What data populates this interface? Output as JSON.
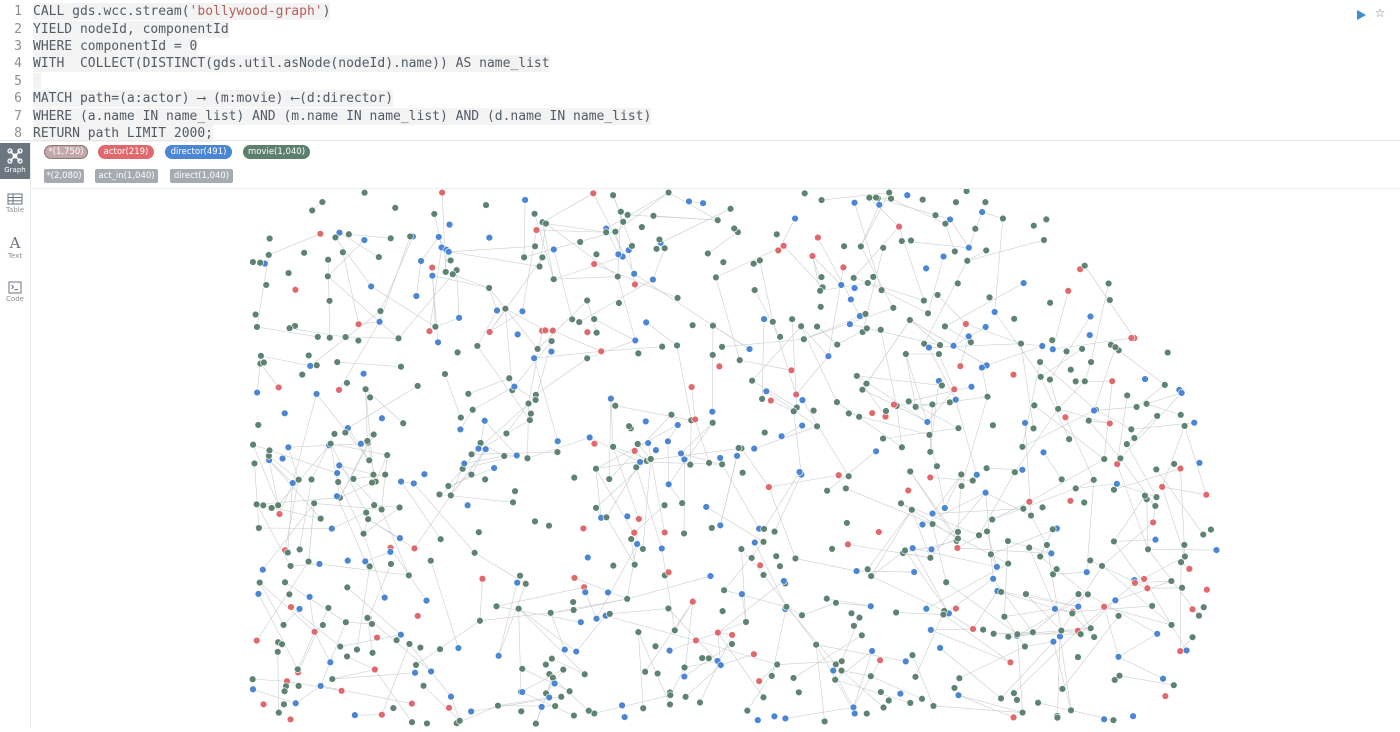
{
  "editor": {
    "lines": [
      {
        "num": "1",
        "segments": [
          {
            "t": "CALL gds.wcc.stream("
          },
          {
            "t": "'bollywood-graph'",
            "cls": "str"
          },
          {
            "t": ")"
          }
        ]
      },
      {
        "num": "2",
        "segments": [
          {
            "t": "YIELD nodeId, componentId"
          }
        ]
      },
      {
        "num": "3",
        "segments": [
          {
            "t": "WHERE componentId = 0"
          }
        ]
      },
      {
        "num": "4",
        "segments": [
          {
            "t": "WITH  COLLECT(DISTINCT(gds.util.asNode(nodeId).name)) AS name_list"
          }
        ]
      },
      {
        "num": "5",
        "segments": []
      },
      {
        "num": "6",
        "segments": [
          {
            "t": "MATCH path=(a:actor) ⟶ (m:movie) ⟵(d:director)"
          }
        ]
      },
      {
        "num": "7",
        "segments": [
          {
            "t": "WHERE (a.name IN name_list) AND (m.name IN name_list) AND (d.name IN name_list)"
          }
        ]
      },
      {
        "num": "8",
        "segments": [
          {
            "t": "RETURN path LIMIT 2000;"
          }
        ]
      }
    ],
    "run_icon": "play-icon",
    "favorite_icon": "star-icon"
  },
  "rail": {
    "items": [
      {
        "name": "graph",
        "label": "Graph",
        "icon": "graph-icon",
        "active": true
      },
      {
        "name": "table",
        "label": "Table",
        "icon": "table-icon",
        "active": false
      },
      {
        "name": "text",
        "label": "Text",
        "icon": "text-icon",
        "active": false
      },
      {
        "name": "code",
        "label": "Code",
        "icon": "code-icon",
        "active": false
      }
    ]
  },
  "legend": {
    "node_labels": [
      {
        "label": "*(1,750)",
        "color": "#c2a8a8"
      },
      {
        "label": "actor(219)",
        "color": "#e0696d"
      },
      {
        "label": "director(491)",
        "color": "#4a86d3"
      },
      {
        "label": "movie(1,040)",
        "color": "#5c7f6e"
      }
    ],
    "relationship_types": [
      {
        "label": "*(2,080)"
      },
      {
        "label": "act_in(1,040)"
      },
      {
        "label": "direct(1,040)"
      }
    ]
  },
  "graph": {
    "colors": {
      "movie": "#5e8471",
      "director": "#4a86d3",
      "actor": "#e0696d",
      "edge": "#c9cdd1"
    },
    "node_counts": {
      "actor": 219,
      "director": 491,
      "movie": 1040
    },
    "relationship_counts": {
      "act_in": 1040,
      "direct": 1040
    }
  }
}
